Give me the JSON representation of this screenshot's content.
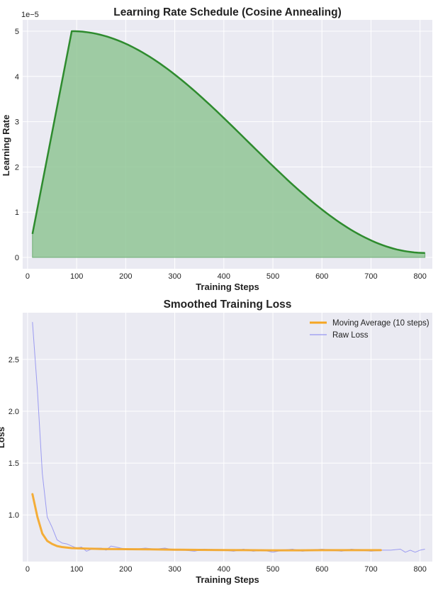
{
  "chart_data": [
    {
      "type": "area",
      "title": "Learning Rate Schedule (Cosine Annealing)",
      "xlabel": "Training Steps",
      "ylabel": "Learning Rate",
      "y_offset_label": "1e−5",
      "xlim": [
        -10,
        825
      ],
      "ylim": [
        -0.25,
        5.25
      ],
      "xticks": [
        0,
        100,
        200,
        300,
        400,
        500,
        600,
        700,
        800
      ],
      "yticks": [
        0,
        1,
        2,
        3,
        4,
        5
      ],
      "grid": true,
      "series": [
        {
          "color": "#2e8b2e",
          "fill_color": "#90c695",
          "schedule": {
            "start_step": 10,
            "end_step": 810,
            "warmup_end_step": 90,
            "initial_lr": 0.52,
            "peak_lr": 5.0,
            "final_lr": 0.1
          },
          "x": [
            10,
            90,
            170,
            250,
            330,
            410,
            490,
            570,
            650,
            730,
            810
          ],
          "y": [
            0.52,
            5.0,
            4.88,
            4.53,
            3.99,
            3.33,
            2.6,
            1.87,
            1.21,
            0.67,
            0.1
          ]
        }
      ]
    },
    {
      "type": "line",
      "title": "Smoothed Training Loss",
      "xlabel": "Training Steps",
      "ylabel": "Loss",
      "xlim": [
        -10,
        825
      ],
      "ylim": [
        0.55,
        2.95
      ],
      "xticks": [
        0,
        100,
        200,
        300,
        400,
        500,
        600,
        700,
        800
      ],
      "yticks": [
        1.0,
        1.5,
        2.0,
        2.5
      ],
      "ytick_labels": [
        "1.0",
        "1.5",
        "2.0",
        "2.5"
      ],
      "grid": true,
      "legend_position": "top-right",
      "series": [
        {
          "name": "Moving Average (10 steps)",
          "color": "#f5a623",
          "x": [
            10,
            20,
            30,
            40,
            50,
            60,
            70,
            80,
            90,
            100,
            150,
            200,
            250,
            300,
            350,
            400,
            450,
            500,
            550,
            600,
            650,
            700,
            720
          ],
          "y": [
            1.2,
            0.98,
            0.82,
            0.75,
            0.72,
            0.7,
            0.69,
            0.685,
            0.68,
            0.678,
            0.672,
            0.67,
            0.668,
            0.665,
            0.663,
            0.661,
            0.66,
            0.659,
            0.659,
            0.66,
            0.66,
            0.66,
            0.66
          ]
        },
        {
          "name": "Raw Loss",
          "color": "#8080f0",
          "x": [
            10,
            20,
            30,
            40,
            50,
            60,
            70,
            80,
            90,
            100,
            110,
            120,
            130,
            140,
            150,
            160,
            170,
            180,
            190,
            200,
            220,
            240,
            260,
            280,
            300,
            320,
            340,
            360,
            380,
            400,
            420,
            440,
            460,
            480,
            500,
            520,
            540,
            560,
            580,
            600,
            620,
            640,
            660,
            680,
            700,
            720,
            740,
            760,
            770,
            780,
            790,
            800,
            810
          ],
          "y": [
            2.86,
            2.2,
            1.4,
            0.98,
            0.88,
            0.76,
            0.73,
            0.72,
            0.7,
            0.68,
            0.69,
            0.65,
            0.67,
            0.68,
            0.68,
            0.66,
            0.7,
            0.69,
            0.68,
            0.67,
            0.67,
            0.68,
            0.67,
            0.68,
            0.66,
            0.66,
            0.65,
            0.67,
            0.66,
            0.66,
            0.65,
            0.67,
            0.65,
            0.66,
            0.64,
            0.66,
            0.67,
            0.65,
            0.66,
            0.67,
            0.66,
            0.65,
            0.67,
            0.66,
            0.65,
            0.66,
            0.66,
            0.67,
            0.64,
            0.66,
            0.64,
            0.66,
            0.67
          ]
        }
      ]
    }
  ]
}
